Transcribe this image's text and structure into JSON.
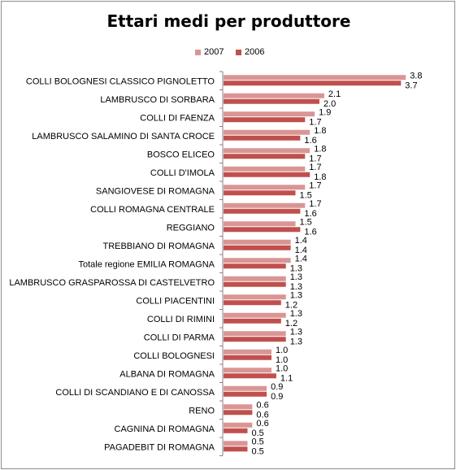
{
  "chart_data": {
    "type": "bar",
    "orientation": "horizontal",
    "title": "Ettari medi per produttore",
    "xlabel": "",
    "ylabel": "",
    "xlim": [
      0,
      4
    ],
    "grid": false,
    "legend_position": "top",
    "categories": [
      "COLLI BOLOGNESI CLASSICO PIGNOLETTO",
      "LAMBRUSCO DI SORBARA",
      "COLLI DI FAENZA",
      "LAMBRUSCO SALAMINO DI SANTA CROCE",
      "BOSCO ELICEO",
      "COLLI D'IMOLA",
      "SANGIOVESE DI ROMAGNA",
      "COLLI ROMAGNA CENTRALE",
      "REGGIANO",
      "TREBBIANO DI ROMAGNA",
      "Totale regione EMILIA ROMAGNA",
      "LAMBRUSCO GRASPAROSSA DI CASTELVETRO",
      "COLLI PIACENTINI",
      "COLLI DI RIMINI",
      "COLLI DI PARMA",
      "COLLI BOLOGNESI",
      "ALBANA DI ROMAGNA",
      "COLLI DI SCANDIANO E DI CANOSSA",
      "RENO",
      "CAGNINA DI ROMAGNA",
      "PAGADEBIT DI ROMAGNA"
    ],
    "series": [
      {
        "name": "2007",
        "color": "#d99594",
        "values": [
          3.8,
          2.1,
          1.9,
          1.8,
          1.8,
          1.7,
          1.7,
          1.7,
          1.5,
          1.4,
          1.4,
          1.3,
          1.3,
          1.3,
          1.3,
          1.0,
          1.0,
          0.9,
          0.6,
          0.6,
          0.5
        ],
        "labels": [
          "3.8",
          "2.1",
          "1.9",
          "1.8",
          "1.8",
          "1.7",
          "1.7",
          "1.7",
          "1.5",
          "1.4",
          "1.4",
          "1.3",
          "1.3",
          "1.3",
          "1.3",
          "1.0",
          "1.0",
          "0.9",
          "0.6",
          "0.6",
          "0.5"
        ]
      },
      {
        "name": "2006",
        "color": "#c0504d",
        "values": [
          3.7,
          2.0,
          1.7,
          1.6,
          1.7,
          1.8,
          1.5,
          1.6,
          1.6,
          1.4,
          1.3,
          1.3,
          1.2,
          1.2,
          1.3,
          1.0,
          1.1,
          0.9,
          0.6,
          0.5,
          0.5
        ],
        "labels": [
          "3.7",
          "2.0",
          "1.7",
          "1.6",
          "1.7",
          "1.8",
          "1.5",
          "1.6",
          "1.6",
          "1.4",
          "1.3",
          "1.3",
          "1.2",
          "1.2",
          "1.3",
          "1.0",
          "1.1",
          "0.9",
          "0.6",
          "0.5",
          "0.5"
        ]
      }
    ]
  }
}
